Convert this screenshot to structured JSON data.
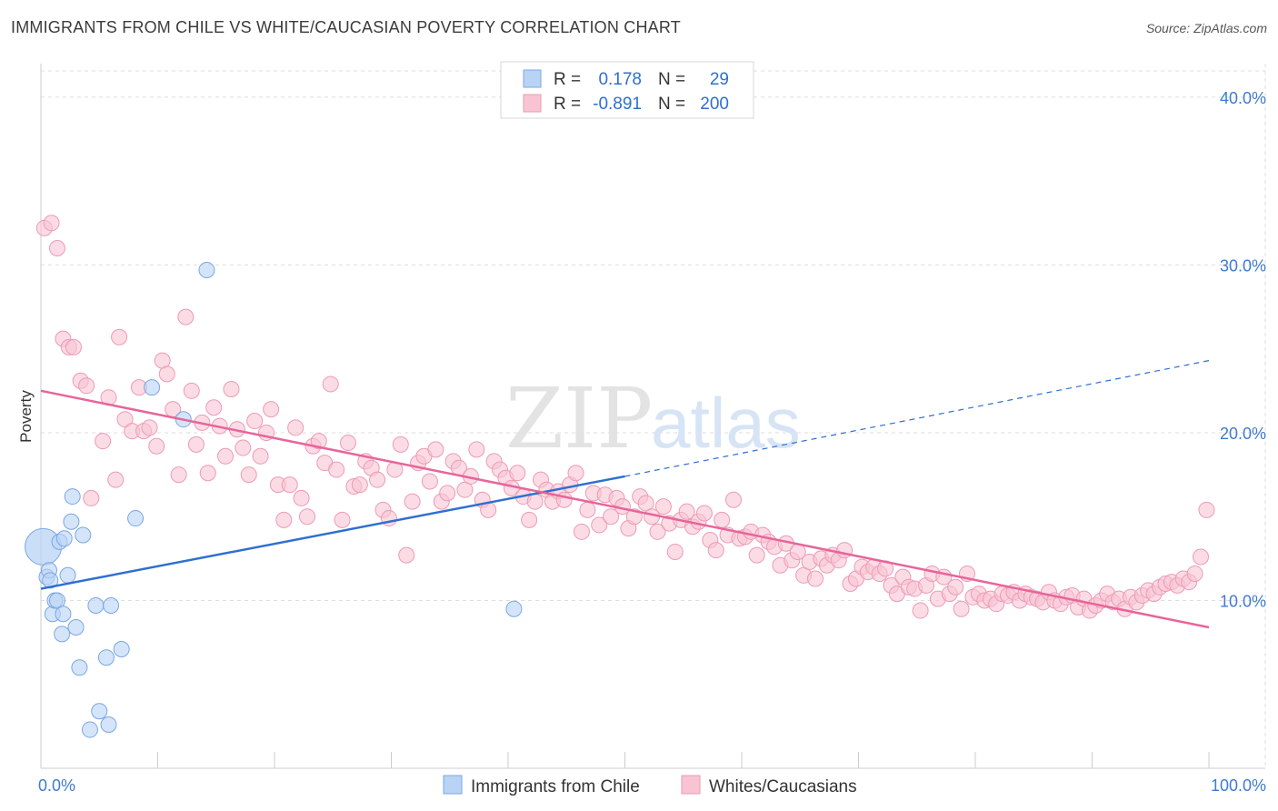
{
  "title": "IMMIGRANTS FROM CHILE VS WHITE/CAUCASIAN POVERTY CORRELATION CHART",
  "source": "Source: ZipAtlas.com",
  "watermark": {
    "zip": "ZIP",
    "atlas": "atlas"
  },
  "colors": {
    "blue_fill": "#b9d3f5",
    "blue_stroke": "#7aa7e3",
    "blue_line": "#2e6fd0",
    "pink_fill": "#f8c4d4",
    "pink_stroke": "#ee9ab5",
    "pink_line": "#e8649a",
    "tick_text": "#3f7bd0",
    "grid": "#dddddd"
  },
  "legend": {
    "rows": [
      {
        "r_label": "R =",
        "r_value": "0.178",
        "n_label": "N =",
        "n_value": "29",
        "series": "blue"
      },
      {
        "r_label": "R =",
        "r_value": "-0.891",
        "n_label": "N =",
        "n_value": "200",
        "series": "pink"
      }
    ]
  },
  "bottom_legend": [
    "Immigrants from Chile",
    "Whites/Caucasians"
  ],
  "chart_data": {
    "type": "scatter",
    "title": "IMMIGRANTS FROM CHILE VS WHITE/CAUCASIAN POVERTY CORRELATION CHART",
    "xlabel": "",
    "ylabel": "Poverty",
    "xlim": [
      0,
      100
    ],
    "ylim": [
      0,
      42
    ],
    "x_tick_labels": [
      "0.0%",
      "100.0%"
    ],
    "y_ticks": [
      10,
      20,
      30,
      40
    ],
    "y_tick_labels": [
      "10.0%",
      "20.0%",
      "30.0%",
      "40.0%"
    ],
    "grid": true,
    "legend_position": "top-center",
    "series": [
      {
        "name": "Immigrants from Chile",
        "color": "#b9d3f5",
        "r": 0.178,
        "n": 29,
        "trend": {
          "x0": 0,
          "y0": 10.7,
          "x1": 50,
          "y1": 17.4,
          "dashed_to_x": 100,
          "dashed_to_y": 24.3
        },
        "points": [
          [
            0.2,
            13.2
          ],
          [
            0.5,
            11.4
          ],
          [
            0.7,
            11.8
          ],
          [
            0.8,
            11.2
          ],
          [
            1.0,
            9.2
          ],
          [
            1.2,
            10.0
          ],
          [
            1.4,
            10.0
          ],
          [
            1.6,
            13.5
          ],
          [
            1.8,
            8.0
          ],
          [
            1.9,
            9.2
          ],
          [
            2.0,
            13.7
          ],
          [
            2.3,
            11.5
          ],
          [
            2.6,
            14.7
          ],
          [
            2.7,
            16.2
          ],
          [
            3.0,
            8.4
          ],
          [
            3.3,
            6.0
          ],
          [
            3.6,
            13.9
          ],
          [
            4.2,
            2.3
          ],
          [
            4.7,
            9.7
          ],
          [
            5.0,
            3.4
          ],
          [
            5.6,
            6.6
          ],
          [
            5.8,
            2.6
          ],
          [
            6.0,
            9.7
          ],
          [
            6.9,
            7.1
          ],
          [
            8.1,
            14.9
          ],
          [
            9.5,
            22.7
          ],
          [
            12.2,
            20.8
          ],
          [
            14.2,
            29.7
          ],
          [
            40.5,
            9.5
          ]
        ]
      },
      {
        "name": "Whites/Caucasians",
        "color": "#f8c4d4",
        "r": -0.891,
        "n": 200,
        "trend": {
          "x0": 0,
          "y0": 22.5,
          "x1": 100,
          "y1": 8.4
        },
        "points": [
          [
            0.3,
            32.2
          ],
          [
            0.9,
            32.5
          ],
          [
            1.4,
            31.0
          ],
          [
            1.9,
            25.6
          ],
          [
            2.4,
            25.1
          ],
          [
            2.8,
            25.1
          ],
          [
            3.4,
            23.1
          ],
          [
            3.9,
            22.8
          ],
          [
            4.3,
            16.1
          ],
          [
            5.3,
            19.5
          ],
          [
            5.8,
            22.1
          ],
          [
            6.4,
            17.2
          ],
          [
            6.7,
            25.7
          ],
          [
            7.2,
            20.8
          ],
          [
            7.8,
            20.1
          ],
          [
            8.4,
            22.7
          ],
          [
            8.8,
            20.1
          ],
          [
            9.3,
            20.3
          ],
          [
            9.9,
            19.2
          ],
          [
            10.4,
            24.3
          ],
          [
            10.8,
            23.5
          ],
          [
            11.3,
            21.4
          ],
          [
            11.8,
            17.5
          ],
          [
            12.4,
            26.9
          ],
          [
            12.9,
            22.5
          ],
          [
            13.3,
            19.3
          ],
          [
            13.8,
            20.6
          ],
          [
            14.3,
            17.6
          ],
          [
            14.8,
            21.5
          ],
          [
            15.3,
            20.4
          ],
          [
            15.8,
            18.6
          ],
          [
            16.3,
            22.6
          ],
          [
            16.8,
            20.2
          ],
          [
            17.3,
            19.1
          ],
          [
            17.8,
            17.5
          ],
          [
            18.3,
            20.7
          ],
          [
            18.8,
            18.6
          ],
          [
            19.3,
            20.0
          ],
          [
            19.7,
            21.4
          ],
          [
            20.3,
            16.9
          ],
          [
            20.8,
            14.8
          ],
          [
            21.3,
            16.9
          ],
          [
            21.8,
            20.3
          ],
          [
            22.3,
            16.1
          ],
          [
            22.8,
            15.0
          ],
          [
            23.3,
            19.2
          ],
          [
            23.8,
            19.5
          ],
          [
            24.3,
            18.2
          ],
          [
            24.8,
            22.9
          ],
          [
            25.3,
            17.8
          ],
          [
            25.8,
            14.8
          ],
          [
            26.3,
            19.4
          ],
          [
            26.8,
            16.8
          ],
          [
            27.3,
            16.9
          ],
          [
            27.8,
            18.3
          ],
          [
            28.3,
            17.9
          ],
          [
            28.8,
            17.2
          ],
          [
            29.3,
            15.4
          ],
          [
            29.8,
            14.9
          ],
          [
            30.3,
            17.8
          ],
          [
            30.8,
            19.3
          ],
          [
            31.3,
            12.7
          ],
          [
            31.8,
            15.9
          ],
          [
            32.3,
            18.2
          ],
          [
            32.8,
            18.6
          ],
          [
            33.3,
            17.1
          ],
          [
            33.8,
            19.0
          ],
          [
            34.3,
            15.9
          ],
          [
            34.8,
            16.4
          ],
          [
            35.3,
            18.3
          ],
          [
            35.8,
            17.9
          ],
          [
            36.3,
            16.6
          ],
          [
            36.8,
            17.4
          ],
          [
            37.3,
            19.0
          ],
          [
            37.8,
            16.0
          ],
          [
            38.3,
            15.4
          ],
          [
            38.8,
            18.3
          ],
          [
            39.3,
            17.8
          ],
          [
            39.8,
            17.3
          ],
          [
            40.3,
            16.7
          ],
          [
            40.8,
            17.6
          ],
          [
            41.3,
            16.2
          ],
          [
            41.8,
            14.8
          ],
          [
            42.3,
            15.9
          ],
          [
            42.8,
            17.2
          ],
          [
            43.3,
            16.6
          ],
          [
            43.8,
            15.9
          ],
          [
            44.3,
            16.5
          ],
          [
            44.8,
            16.0
          ],
          [
            45.3,
            16.9
          ],
          [
            45.8,
            17.6
          ],
          [
            46.3,
            14.1
          ],
          [
            46.8,
            15.4
          ],
          [
            47.3,
            16.4
          ],
          [
            47.8,
            14.5
          ],
          [
            48.3,
            16.3
          ],
          [
            48.8,
            15.0
          ],
          [
            49.3,
            16.1
          ],
          [
            49.8,
            15.6
          ],
          [
            50.3,
            14.3
          ],
          [
            50.8,
            15.0
          ],
          [
            51.3,
            16.2
          ],
          [
            51.8,
            15.8
          ],
          [
            52.3,
            15.0
          ],
          [
            52.8,
            14.1
          ],
          [
            53.3,
            15.6
          ],
          [
            53.8,
            14.6
          ],
          [
            54.3,
            12.9
          ],
          [
            54.8,
            14.8
          ],
          [
            55.3,
            15.3
          ],
          [
            55.8,
            14.4
          ],
          [
            56.3,
            14.7
          ],
          [
            56.8,
            15.2
          ],
          [
            57.3,
            13.6
          ],
          [
            57.8,
            13.0
          ],
          [
            58.3,
            14.8
          ],
          [
            58.8,
            13.9
          ],
          [
            59.3,
            16.0
          ],
          [
            59.8,
            13.7
          ],
          [
            60.3,
            13.8
          ],
          [
            60.8,
            14.1
          ],
          [
            61.3,
            12.7
          ],
          [
            61.8,
            13.9
          ],
          [
            62.3,
            13.5
          ],
          [
            62.8,
            13.2
          ],
          [
            63.3,
            12.1
          ],
          [
            63.8,
            13.4
          ],
          [
            64.3,
            12.4
          ],
          [
            64.8,
            12.9
          ],
          [
            65.3,
            11.5
          ],
          [
            65.8,
            12.3
          ],
          [
            66.3,
            11.3
          ],
          [
            66.8,
            12.5
          ],
          [
            67.3,
            12.1
          ],
          [
            67.8,
            12.7
          ],
          [
            68.3,
            12.4
          ],
          [
            68.8,
            13.0
          ],
          [
            69.3,
            11.0
          ],
          [
            69.8,
            11.3
          ],
          [
            70.3,
            12.0
          ],
          [
            70.8,
            11.7
          ],
          [
            71.3,
            12.0
          ],
          [
            71.8,
            11.6
          ],
          [
            72.3,
            11.9
          ],
          [
            72.8,
            10.9
          ],
          [
            73.3,
            10.4
          ],
          [
            73.8,
            11.4
          ],
          [
            74.3,
            10.8
          ],
          [
            74.8,
            10.7
          ],
          [
            75.3,
            9.4
          ],
          [
            75.8,
            10.9
          ],
          [
            76.3,
            11.6
          ],
          [
            76.8,
            10.1
          ],
          [
            77.3,
            11.4
          ],
          [
            77.8,
            10.4
          ],
          [
            78.3,
            10.8
          ],
          [
            78.8,
            9.5
          ],
          [
            79.3,
            11.6
          ],
          [
            79.8,
            10.2
          ],
          [
            80.3,
            10.4
          ],
          [
            80.8,
            10.0
          ],
          [
            81.3,
            10.1
          ],
          [
            81.8,
            9.8
          ],
          [
            82.3,
            10.4
          ],
          [
            82.8,
            10.3
          ],
          [
            83.3,
            10.5
          ],
          [
            83.8,
            10.0
          ],
          [
            84.3,
            10.4
          ],
          [
            84.8,
            10.2
          ],
          [
            85.3,
            10.1
          ],
          [
            85.8,
            9.9
          ],
          [
            86.3,
            10.5
          ],
          [
            86.8,
            10.0
          ],
          [
            87.3,
            9.8
          ],
          [
            87.8,
            10.2
          ],
          [
            88.3,
            10.3
          ],
          [
            88.8,
            9.6
          ],
          [
            89.3,
            10.1
          ],
          [
            89.8,
            9.4
          ],
          [
            90.3,
            9.7
          ],
          [
            90.8,
            10.0
          ],
          [
            91.3,
            10.4
          ],
          [
            91.8,
            9.9
          ],
          [
            92.3,
            10.1
          ],
          [
            92.8,
            9.5
          ],
          [
            93.3,
            10.2
          ],
          [
            93.8,
            9.9
          ],
          [
            94.3,
            10.3
          ],
          [
            94.8,
            10.6
          ],
          [
            95.3,
            10.4
          ],
          [
            95.8,
            10.8
          ],
          [
            96.3,
            11.0
          ],
          [
            96.8,
            11.1
          ],
          [
            97.3,
            10.9
          ],
          [
            97.8,
            11.3
          ],
          [
            98.3,
            11.1
          ],
          [
            98.8,
            11.6
          ],
          [
            99.3,
            12.6
          ],
          [
            99.8,
            15.4
          ]
        ]
      }
    ]
  }
}
